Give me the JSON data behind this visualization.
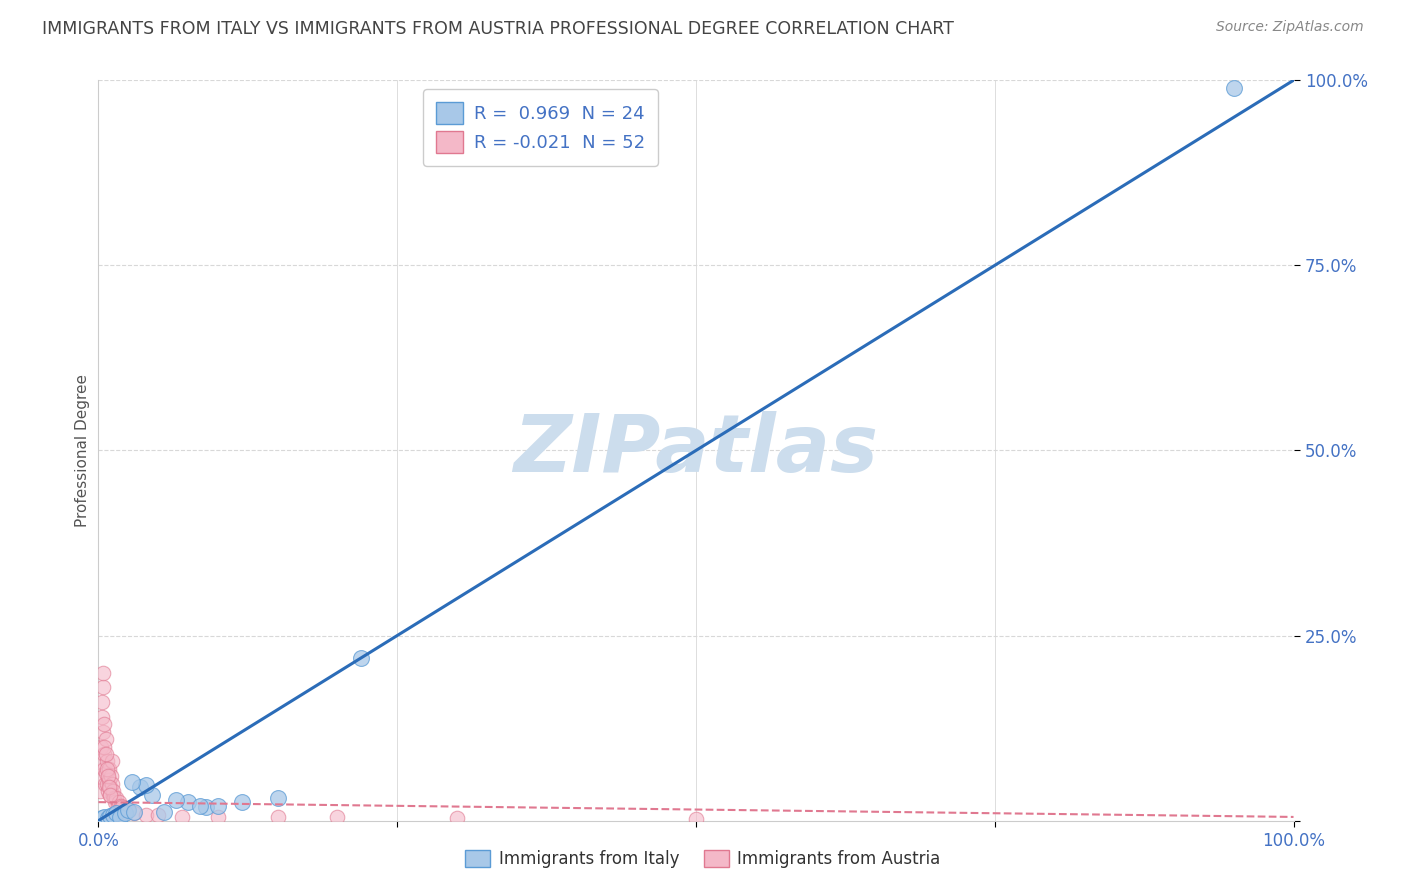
{
  "title": "IMMIGRANTS FROM ITALY VS IMMIGRANTS FROM AUSTRIA PROFESSIONAL DEGREE CORRELATION CHART",
  "source": "Source: ZipAtlas.com",
  "xlabel_italy": "Immigrants from Italy",
  "xlabel_austria": "Immigrants from Austria",
  "ylabel": "Professional Degree",
  "watermark": "ZIPatlas",
  "legend_r1": "R =  0.969  N = 24",
  "legend_r2": "R = -0.021  N = 52",
  "blue_scatter_color": "#a8c8e8",
  "blue_edge_color": "#5b9bd5",
  "pink_scatter_color": "#f4b8c8",
  "pink_edge_color": "#e07890",
  "blue_line_color": "#2b6cb8",
  "pink_line_color": "#e07890",
  "title_color": "#444444",
  "axis_tick_color": "#4472c4",
  "legend_text_color": "#4472c4",
  "grid_color": "#d8d8d8",
  "watermark_color": "#ccdded",
  "bottom_legend_text_color": "#333333",
  "italy_x": [
    0.3,
    0.5,
    0.8,
    1.0,
    1.2,
    1.5,
    1.8,
    2.2,
    2.5,
    3.0,
    4.5,
    5.5,
    7.5,
    9.0,
    10.0,
    12.0,
    15.0,
    95.0,
    3.5,
    4.0,
    2.8,
    6.5,
    8.5,
    22.0
  ],
  "italy_y": [
    0.3,
    0.5,
    0.4,
    0.6,
    0.8,
    1.0,
    0.5,
    1.0,
    1.5,
    1.2,
    3.5,
    1.2,
    2.5,
    1.8,
    2.0,
    2.5,
    3.0,
    99.0,
    4.5,
    4.8,
    5.2,
    2.8,
    2.0,
    22.0
  ],
  "austria_x": [
    0.1,
    0.15,
    0.2,
    0.25,
    0.3,
    0.35,
    0.4,
    0.45,
    0.5,
    0.55,
    0.6,
    0.65,
    0.7,
    0.75,
    0.8,
    0.85,
    0.9,
    0.95,
    1.0,
    1.05,
    1.1,
    1.15,
    1.2,
    1.25,
    1.3,
    1.4,
    1.5,
    1.6,
    1.7,
    1.8,
    1.9,
    2.0,
    2.2,
    2.5,
    3.0,
    4.0,
    5.0,
    7.0,
    10.0,
    15.0,
    20.0,
    30.0,
    50.0,
    0.3,
    0.4,
    0.5,
    0.5,
    0.6,
    0.7,
    0.8,
    0.9,
    1.0
  ],
  "austria_y": [
    4.0,
    6.0,
    8.0,
    10.0,
    14.0,
    18.0,
    12.0,
    7.0,
    9.0,
    5.0,
    11.0,
    6.5,
    5.0,
    8.0,
    4.0,
    7.0,
    5.5,
    3.5,
    4.5,
    6.0,
    8.0,
    5.0,
    3.5,
    4.0,
    3.0,
    2.5,
    3.0,
    2.0,
    2.5,
    1.5,
    2.0,
    1.8,
    1.2,
    1.5,
    1.0,
    0.8,
    0.8,
    0.5,
    0.5,
    0.5,
    0.5,
    0.3,
    0.2,
    16.0,
    20.0,
    13.0,
    10.0,
    9.0,
    7.0,
    6.0,
    4.5,
    3.5
  ],
  "blue_line_x0": 0.0,
  "blue_line_y0": 0.0,
  "blue_line_x1": 100.0,
  "blue_line_y1": 100.0,
  "pink_line_x0": 0.0,
  "pink_line_y0": 2.5,
  "pink_line_x1": 100.0,
  "pink_line_y1": 0.5,
  "xmin": 0.0,
  "xmax": 100.0,
  "ymin": 0.0,
  "ymax": 100.0
}
